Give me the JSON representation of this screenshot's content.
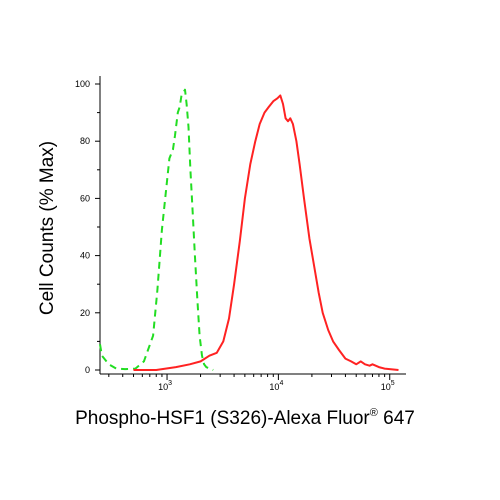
{
  "chart_data": {
    "type": "line",
    "xlabel": "Phospho-HSF1 (S326)-Alexa Fluor",
    "xlabel_superscript": "®",
    "xlabel_suffix": " 647",
    "ylabel": "Cell Counts (% Max)",
    "x_scale": "log",
    "xlim": [
      250,
      140000
    ],
    "ylim": [
      0,
      100
    ],
    "x_tick_labels": [
      {
        "base": "10",
        "exp": "3",
        "value": 1000
      },
      {
        "base": "10",
        "exp": "4",
        "value": 10000
      },
      {
        "base": "10",
        "exp": "5",
        "value": 100000
      }
    ],
    "y_ticks": [
      0,
      20,
      40,
      60,
      80,
      100
    ],
    "grid": false,
    "legend": "none",
    "series": [
      {
        "color": "#22dd22",
        "style": "dashed",
        "x": [
          250,
          260,
          300,
          350,
          420,
          520,
          620,
          750,
          820,
          900,
          980,
          1050,
          1130,
          1180,
          1250,
          1300,
          1350,
          1400,
          1450,
          1500,
          1560,
          1620,
          1700,
          1780,
          1870,
          1960,
          2060,
          2150,
          2250,
          2400,
          2600
        ],
        "y": [
          9,
          5,
          2,
          0.5,
          0.3,
          0.5,
          3,
          12,
          28,
          49,
          63,
          74,
          77,
          82,
          90,
          92,
          96,
          97,
          98,
          93,
          85,
          70,
          55,
          40,
          25,
          12,
          5,
          2,
          1,
          0.5,
          0
        ]
      },
      {
        "color": "#ff2222",
        "style": "solid",
        "x": [
          500,
          800,
          1200,
          1600,
          2000,
          2400,
          2800,
          3200,
          3600,
          4000,
          4500,
          5000,
          5600,
          6200,
          6800,
          7500,
          8200,
          9000,
          9800,
          10400,
          11000,
          11600,
          12200,
          12800,
          13500,
          14500,
          15500,
          17000,
          19000,
          21000,
          23000,
          25000,
          28000,
          31000,
          35000,
          40000,
          45000,
          50000,
          55000,
          60000,
          66000,
          70000,
          80000,
          90000,
          100000,
          120000
        ],
        "y": [
          0,
          0,
          1,
          2,
          3,
          5,
          6,
          10,
          18,
          30,
          45,
          60,
          72,
          80,
          86,
          90,
          92,
          94,
          95,
          96,
          93,
          88,
          87,
          88,
          86,
          80,
          72,
          60,
          46,
          36,
          27,
          20,
          14,
          10,
          7,
          4,
          3,
          2,
          3,
          2,
          1.5,
          2,
          1,
          0.5,
          0.3,
          0
        ]
      }
    ]
  }
}
